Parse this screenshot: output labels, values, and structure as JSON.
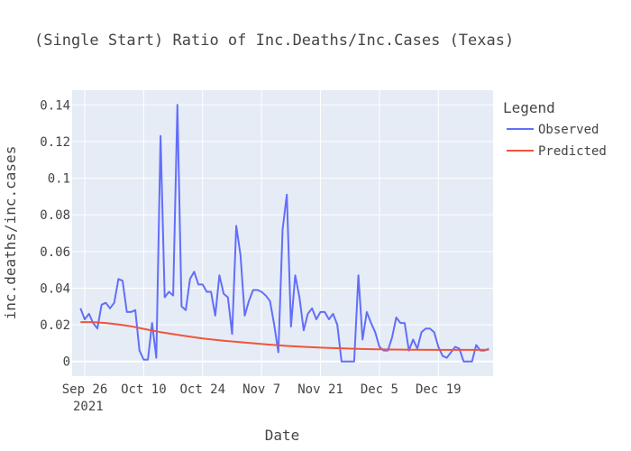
{
  "chart_data": {
    "type": "line",
    "title": "(Single Start) Ratio of Inc.Deaths/Inc.Cases (Texas)",
    "xlabel": "Date",
    "ylabel": "inc.deaths/inc.cases",
    "x_start": "2021-09-23",
    "x_end": "2022-01-01",
    "ylim": [
      -0.008,
      0.148
    ],
    "x_ticks": [
      {
        "date": "2021-09-26",
        "label": "Sep 26",
        "sublabel": "2021"
      },
      {
        "date": "2021-10-10",
        "label": "Oct 10",
        "sublabel": ""
      },
      {
        "date": "2021-10-24",
        "label": "Oct 24",
        "sublabel": ""
      },
      {
        "date": "2021-11-07",
        "label": "Nov 7",
        "sublabel": ""
      },
      {
        "date": "2021-11-21",
        "label": "Nov 21",
        "sublabel": ""
      },
      {
        "date": "2021-12-05",
        "label": "Dec 5",
        "sublabel": ""
      },
      {
        "date": "2021-12-19",
        "label": "Dec 19",
        "sublabel": ""
      }
    ],
    "y_ticks": [
      {
        "value": 0,
        "label": "0"
      },
      {
        "value": 0.02,
        "label": "0.02"
      },
      {
        "value": 0.04,
        "label": "0.04"
      },
      {
        "value": 0.06,
        "label": "0.06"
      },
      {
        "value": 0.08,
        "label": "0.08"
      },
      {
        "value": 0.1,
        "label": "0.1"
      },
      {
        "value": 0.12,
        "label": "0.12"
      },
      {
        "value": 0.14,
        "label": "0.14"
      }
    ],
    "grid": true,
    "legend": {
      "title": "Legend",
      "placement": "top-right"
    },
    "series": [
      {
        "name": "Observed",
        "color": "#636efa",
        "points": [
          [
            "2021-09-25",
            0.029
          ],
          [
            "2021-09-26",
            0.023
          ],
          [
            "2021-09-27",
            0.026
          ],
          [
            "2021-09-28",
            0.021
          ],
          [
            "2021-09-29",
            0.018
          ],
          [
            "2021-09-30",
            0.031
          ],
          [
            "2021-10-01",
            0.032
          ],
          [
            "2021-10-02",
            0.029
          ],
          [
            "2021-10-03",
            0.032
          ],
          [
            "2021-10-04",
            0.045
          ],
          [
            "2021-10-05",
            0.044
          ],
          [
            "2021-10-06",
            0.027
          ],
          [
            "2021-10-07",
            0.027
          ],
          [
            "2021-10-08",
            0.028
          ],
          [
            "2021-10-09",
            0.006
          ],
          [
            "2021-10-10",
            0.001
          ],
          [
            "2021-10-11",
            0.001
          ],
          [
            "2021-10-12",
            0.021
          ],
          [
            "2021-10-13",
            0.002
          ],
          [
            "2021-10-14",
            0.123
          ],
          [
            "2021-10-15",
            0.035
          ],
          [
            "2021-10-16",
            0.038
          ],
          [
            "2021-10-17",
            0.036
          ],
          [
            "2021-10-18",
            0.14
          ],
          [
            "2021-10-19",
            0.03
          ],
          [
            "2021-10-20",
            0.028
          ],
          [
            "2021-10-21",
            0.045
          ],
          [
            "2021-10-22",
            0.049
          ],
          [
            "2021-10-23",
            0.042
          ],
          [
            "2021-10-24",
            0.042
          ],
          [
            "2021-10-25",
            0.038
          ],
          [
            "2021-10-26",
            0.038
          ],
          [
            "2021-10-27",
            0.025
          ],
          [
            "2021-10-28",
            0.047
          ],
          [
            "2021-10-29",
            0.037
          ],
          [
            "2021-10-30",
            0.035
          ],
          [
            "2021-10-31",
            0.015
          ],
          [
            "2021-11-01",
            0.074
          ],
          [
            "2021-11-02",
            0.058
          ],
          [
            "2021-11-03",
            0.025
          ],
          [
            "2021-11-04",
            0.033
          ],
          [
            "2021-11-05",
            0.039
          ],
          [
            "2021-11-06",
            0.039
          ],
          [
            "2021-11-07",
            0.038
          ],
          [
            "2021-11-08",
            0.036
          ],
          [
            "2021-11-09",
            0.033
          ],
          [
            "2021-11-10",
            0.02
          ],
          [
            "2021-11-11",
            0.005
          ],
          [
            "2021-11-12",
            0.072
          ],
          [
            "2021-11-13",
            0.091
          ],
          [
            "2021-11-14",
            0.019
          ],
          [
            "2021-11-15",
            0.047
          ],
          [
            "2021-11-16",
            0.035
          ],
          [
            "2021-11-17",
            0.017
          ],
          [
            "2021-11-18",
            0.026
          ],
          [
            "2021-11-19",
            0.029
          ],
          [
            "2021-11-20",
            0.023
          ],
          [
            "2021-11-21",
            0.027
          ],
          [
            "2021-11-22",
            0.027
          ],
          [
            "2021-11-23",
            0.023
          ],
          [
            "2021-11-24",
            0.026
          ],
          [
            "2021-11-25",
            0.02
          ],
          [
            "2021-11-26",
            0.0
          ],
          [
            "2021-11-27",
            0.0
          ],
          [
            "2021-11-28",
            0.0
          ],
          [
            "2021-11-29",
            0.0
          ],
          [
            "2021-11-30",
            0.047
          ],
          [
            "2021-12-01",
            0.012
          ],
          [
            "2021-12-02",
            0.027
          ],
          [
            "2021-12-03",
            0.021
          ],
          [
            "2021-12-04",
            0.016
          ],
          [
            "2021-12-05",
            0.008
          ],
          [
            "2021-12-06",
            0.006
          ],
          [
            "2021-12-07",
            0.006
          ],
          [
            "2021-12-08",
            0.013
          ],
          [
            "2021-12-09",
            0.024
          ],
          [
            "2021-12-10",
            0.021
          ],
          [
            "2021-12-11",
            0.021
          ],
          [
            "2021-12-12",
            0.006
          ],
          [
            "2021-12-13",
            0.012
          ],
          [
            "2021-12-14",
            0.007
          ],
          [
            "2021-12-15",
            0.016
          ],
          [
            "2021-12-16",
            0.018
          ],
          [
            "2021-12-17",
            0.018
          ],
          [
            "2021-12-18",
            0.016
          ],
          [
            "2021-12-19",
            0.008
          ],
          [
            "2021-12-20",
            0.003
          ],
          [
            "2021-12-21",
            0.002
          ],
          [
            "2021-12-22",
            0.005
          ],
          [
            "2021-12-23",
            0.008
          ],
          [
            "2021-12-24",
            0.007
          ],
          [
            "2021-12-25",
            0.0
          ],
          [
            "2021-12-26",
            0.0
          ],
          [
            "2021-12-27",
            0.0
          ],
          [
            "2021-12-28",
            0.009
          ],
          [
            "2021-12-29",
            0.006
          ],
          [
            "2021-12-30",
            0.006
          ],
          [
            "2021-12-31",
            0.007
          ]
        ]
      },
      {
        "name": "Predicted",
        "color": "#ef553b",
        "points": [
          [
            "2021-09-25",
            0.0215
          ],
          [
            "2021-09-28",
            0.0215
          ],
          [
            "2021-10-01",
            0.021
          ],
          [
            "2021-10-04",
            0.0202
          ],
          [
            "2021-10-07",
            0.0192
          ],
          [
            "2021-10-10",
            0.0178
          ],
          [
            "2021-10-14",
            0.016
          ],
          [
            "2021-10-19",
            0.0142
          ],
          [
            "2021-10-24",
            0.0125
          ],
          [
            "2021-10-29",
            0.0113
          ],
          [
            "2021-11-03",
            0.0103
          ],
          [
            "2021-11-08",
            0.0093
          ],
          [
            "2021-11-13",
            0.0085
          ],
          [
            "2021-11-18",
            0.0079
          ],
          [
            "2021-11-23",
            0.0074
          ],
          [
            "2021-11-28",
            0.007
          ],
          [
            "2021-12-03",
            0.0067
          ],
          [
            "2021-12-08",
            0.0065
          ],
          [
            "2021-12-13",
            0.0064
          ],
          [
            "2021-12-18",
            0.0063
          ],
          [
            "2021-12-23",
            0.0063
          ],
          [
            "2021-12-28",
            0.0063
          ],
          [
            "2021-12-31",
            0.0064
          ]
        ]
      }
    ]
  }
}
